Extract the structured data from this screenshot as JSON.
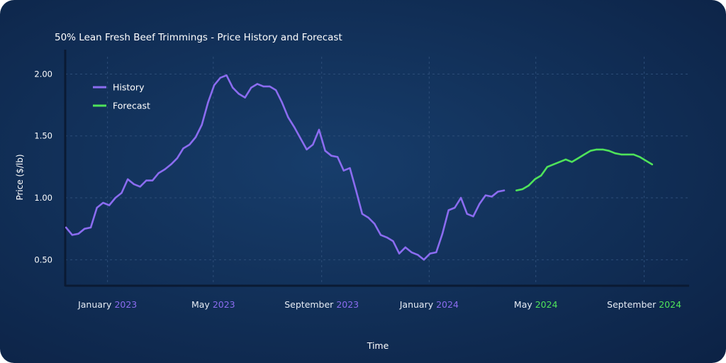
{
  "chart_data": {
    "type": "line",
    "title": "50% Lean Fresh Beef Trimmings - Price History and Forecast",
    "xlabel": "Time",
    "ylabel": "Price ($/lb)",
    "ylim": [
      0.29,
      2.14
    ],
    "xlim": [
      "2022-11-14",
      "2024-10-22"
    ],
    "grid": true,
    "legend_placement": "top-left",
    "y_ticks": [
      "0.50",
      "1.00",
      "1.50",
      "2.00"
    ],
    "x_ticks": [
      {
        "date": "2023-01-01",
        "month": "January",
        "year": "2023",
        "year_color": "#8b6cf0"
      },
      {
        "date": "2023-05-01",
        "month": "May",
        "year": "2023",
        "year_color": "#8b6cf0"
      },
      {
        "date": "2023-09-01",
        "month": "September",
        "year": "2023",
        "year_color": "#8b6cf0"
      },
      {
        "date": "2024-01-01",
        "month": "January",
        "year": "2024",
        "year_color": "#8b6cf0"
      },
      {
        "date": "2024-05-01",
        "month": "May",
        "year": "2024",
        "year_color": "#4fe35a"
      },
      {
        "date": "2024-09-01",
        "month": "September",
        "year": "2024",
        "year_color": "#4fe35a"
      }
    ],
    "series": [
      {
        "name": "History",
        "color": "#8b6cf0",
        "x": [
          "2022-11-15",
          "2022-11-22",
          "2022-11-29",
          "2022-12-06",
          "2022-12-13",
          "2022-12-20",
          "2022-12-27",
          "2023-01-03",
          "2023-01-10",
          "2023-01-17",
          "2023-01-24",
          "2023-01-31",
          "2023-02-07",
          "2023-02-14",
          "2023-02-21",
          "2023-02-28",
          "2023-03-07",
          "2023-03-14",
          "2023-03-21",
          "2023-03-28",
          "2023-04-04",
          "2023-04-11",
          "2023-04-18",
          "2023-04-25",
          "2023-05-02",
          "2023-05-09",
          "2023-05-16",
          "2023-05-23",
          "2023-05-30",
          "2023-06-06",
          "2023-06-13",
          "2023-06-20",
          "2023-06-27",
          "2023-07-04",
          "2023-07-11",
          "2023-07-18",
          "2023-07-25",
          "2023-08-01",
          "2023-08-08",
          "2023-08-15",
          "2023-08-22",
          "2023-08-29",
          "2023-09-05",
          "2023-09-12",
          "2023-09-19",
          "2023-09-26",
          "2023-10-03",
          "2023-10-10",
          "2023-10-17",
          "2023-10-24",
          "2023-10-31",
          "2023-11-07",
          "2023-11-14",
          "2023-11-21",
          "2023-11-28",
          "2023-12-05",
          "2023-12-12",
          "2023-12-19",
          "2023-12-26",
          "2024-01-02",
          "2024-01-09",
          "2024-01-16",
          "2024-01-23",
          "2024-01-30",
          "2024-02-06",
          "2024-02-13",
          "2024-02-20",
          "2024-02-27",
          "2024-03-05",
          "2024-03-12",
          "2024-03-19",
          "2024-03-26"
        ],
        "values": [
          0.76,
          0.7,
          0.71,
          0.75,
          0.76,
          0.92,
          0.96,
          0.94,
          1.0,
          1.04,
          1.15,
          1.11,
          1.09,
          1.14,
          1.14,
          1.2,
          1.23,
          1.27,
          1.32,
          1.4,
          1.43,
          1.49,
          1.59,
          1.77,
          1.91,
          1.97,
          1.99,
          1.89,
          1.84,
          1.81,
          1.89,
          1.92,
          1.9,
          1.9,
          1.87,
          1.77,
          1.65,
          1.57,
          1.48,
          1.39,
          1.43,
          1.55,
          1.38,
          1.34,
          1.33,
          1.22,
          1.24,
          1.06,
          0.87,
          0.84,
          0.79,
          0.7,
          0.68,
          0.65,
          0.55,
          0.6,
          0.56,
          0.54,
          0.5,
          0.55,
          0.56,
          0.71,
          0.9,
          0.92,
          1.0,
          0.87,
          0.85,
          0.95,
          1.02,
          1.01,
          1.05,
          1.06
        ]
      },
      {
        "name": "Forecast",
        "color": "#4fe35a",
        "x": [
          "2024-04-09",
          "2024-04-16",
          "2024-04-23",
          "2024-04-30",
          "2024-05-07",
          "2024-05-14",
          "2024-05-21",
          "2024-05-28",
          "2024-06-04",
          "2024-06-11",
          "2024-06-18",
          "2024-06-25",
          "2024-07-02",
          "2024-07-09",
          "2024-07-16",
          "2024-07-23",
          "2024-07-30",
          "2024-08-06",
          "2024-08-13",
          "2024-08-20",
          "2024-08-27",
          "2024-09-03",
          "2024-09-10"
        ],
        "values": [
          1.06,
          1.07,
          1.1,
          1.15,
          1.18,
          1.25,
          1.27,
          1.29,
          1.31,
          1.29,
          1.32,
          1.35,
          1.38,
          1.39,
          1.39,
          1.38,
          1.36,
          1.35,
          1.35,
          1.35,
          1.33,
          1.3,
          1.27
        ]
      }
    ]
  }
}
